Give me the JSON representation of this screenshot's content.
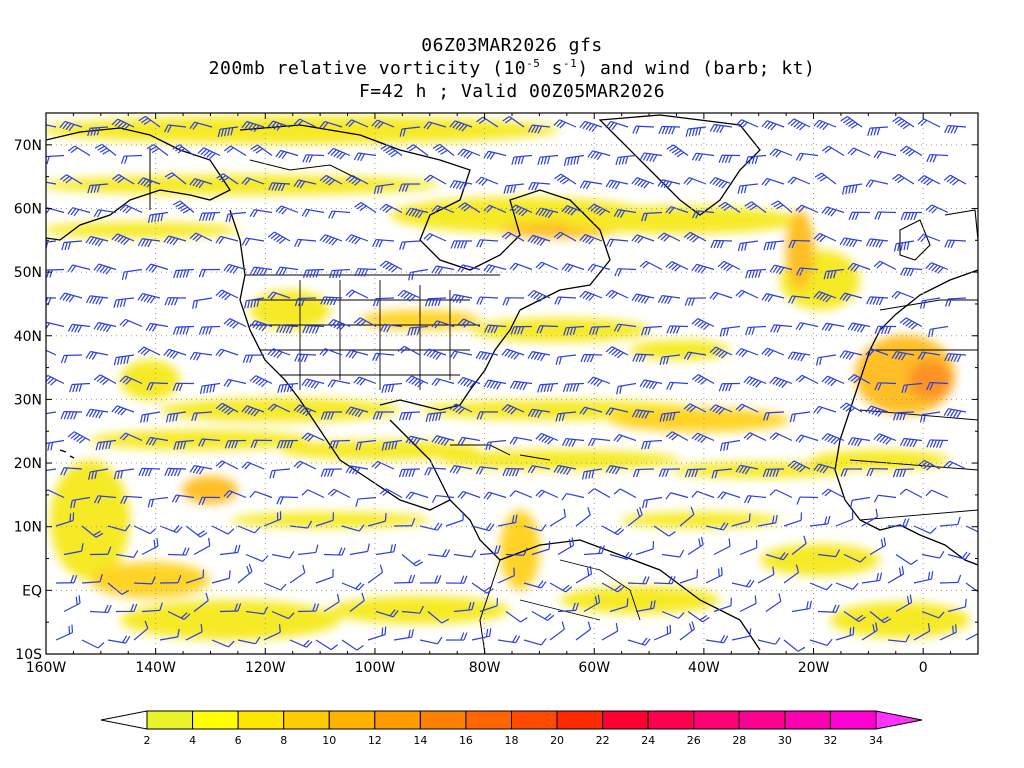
{
  "title": {
    "line1": "06Z03MAR2026 gfs",
    "line2_pre": "200mb relative vorticity (10",
    "line2_exp1": "-5",
    "line2_mid": " s",
    "line2_exp2": "-1",
    "line2_post": ") and wind (barb; kt)",
    "line3": "F=42 h ; Valid 00Z05MAR2026"
  },
  "map": {
    "lon_range": [
      -160,
      10
    ],
    "lat_range": [
      -10,
      75
    ],
    "lat_labels": [
      "70N",
      "60N",
      "50N",
      "40N",
      "30N",
      "20N",
      "10N",
      "EQ",
      "10S"
    ],
    "lon_labels": [
      "160W",
      "140W",
      "120W",
      "100W",
      "80W",
      "60W",
      "40W",
      "20W",
      "0"
    ],
    "barb_color": "#2b3fe0",
    "coast_color": "#000000"
  },
  "colorbar": {
    "labels": [
      "2",
      "4",
      "6",
      "8",
      "10",
      "12",
      "14",
      "16",
      "18",
      "20",
      "22",
      "24",
      "26",
      "28",
      "30",
      "32",
      "34"
    ],
    "colors": [
      "#e9f52b",
      "#ffff00",
      "#ffe600",
      "#ffcc00",
      "#ffb300",
      "#ff9a00",
      "#ff8000",
      "#ff6600",
      "#ff4a00",
      "#ff2a00",
      "#ff0030",
      "#ff0050",
      "#ff0070",
      "#ff0090",
      "#ff00b0",
      "#ff00d0"
    ],
    "over_color": "#ff33ff",
    "under_color": "#ffffff"
  }
}
